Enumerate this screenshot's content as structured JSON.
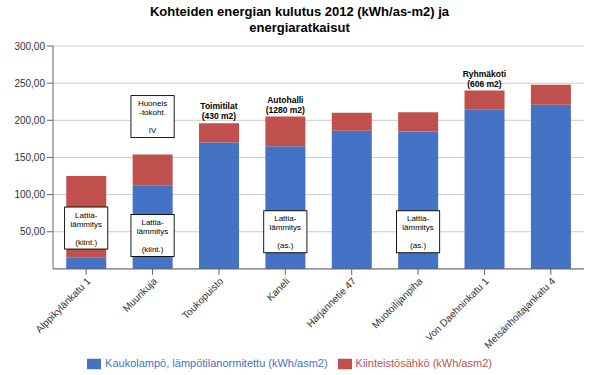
{
  "chart_data": {
    "type": "bar",
    "stacked": true,
    "title": "Kohteiden energian kulutus 2012 (kWh/as-m2) ja\nenergiaratkaisut",
    "categories": [
      "Alppikylänkatu 1",
      "Muurikuja",
      "Toukopuisto",
      "Kaneli",
      "Harjannetie 47",
      "Muotoilijanpiha",
      "Von Daehninkatu 1",
      "Metsänhoitajankatu 4"
    ],
    "series": [
      {
        "name": "Kaukolampö, lämpötilanormitettu (kWh/asm2)",
        "color": "#4472C4",
        "values": [
          15,
          112,
          170,
          165,
          186,
          185,
          215,
          221
        ]
      },
      {
        "name": "Kiinteistösähkö (kWh/asm2)",
        "color": "#C0504D",
        "values": [
          110,
          42,
          26,
          40,
          24,
          26,
          25,
          27
        ]
      }
    ],
    "ylim": [
      0,
      300
    ],
    "yticks": [
      {
        "value": 50,
        "label": "50,00"
      },
      {
        "value": 100,
        "label": "100,00"
      },
      {
        "value": 150,
        "label": "150,00"
      },
      {
        "value": 200,
        "label": "200,00"
      },
      {
        "value": 250,
        "label": "250,00"
      },
      {
        "value": 300,
        "label": "300,00"
      }
    ],
    "grid": true,
    "legend": "bottom",
    "annotations": [
      {
        "text": "Lattia-\nlämmitys\n\n(kiint.)",
        "category": "Alppikylänkatu 1",
        "y": 55
      },
      {
        "text": "Lattia-\nlämmitys\n\n(kiint.)",
        "category": "Muurikuja",
        "y": 45
      },
      {
        "text": "Huoneis\n-tokoht.\n\nIV",
        "category": "Muurikuja",
        "y": 205
      },
      {
        "text": "Toimitilat\n(430 m2)",
        "category": "Toukopuisto"
      },
      {
        "text": "Autohalli\n(1280 m2)",
        "category": "Kaneli"
      },
      {
        "text": "Lattia-\nlämmitys\n\n(as.)",
        "category": "Kaneli",
        "y": 50
      },
      {
        "text": "Lattia-\nlämmitys\n\n(as.)",
        "category": "Muotoilijanpiha",
        "y": 50
      },
      {
        "text": "Ryhmäkoti\n(606 m2)",
        "category": "Von Daehninkatu 1"
      }
    ]
  }
}
